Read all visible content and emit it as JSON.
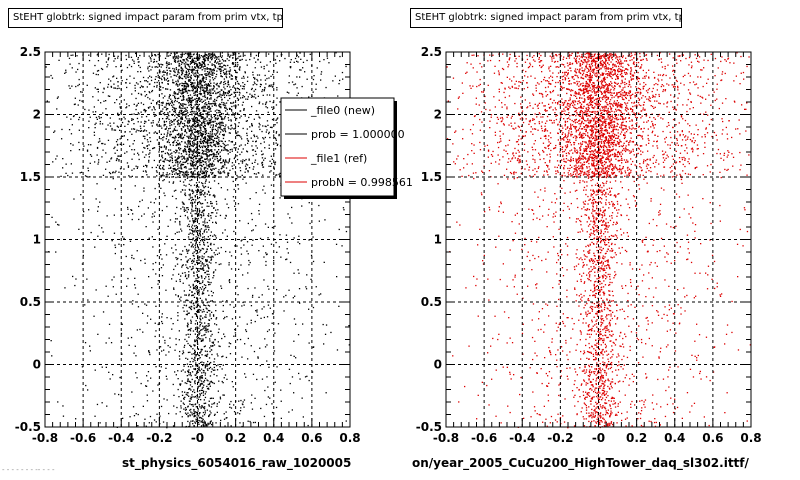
{
  "panels": [
    {
      "title": "StEHT globtrk: signed impact param from prim vtx, tpc+svt",
      "xcaption": "st_physics_6054016_raw_1020005",
      "marker_color": "#000000"
    },
    {
      "title": "StEHT globtrk: signed impact param from prim vtx, tpc+svt",
      "xcaption": "on/year_2005_CuCu200_HighTower_daq_sl302.ittf/",
      "marker_color": "#dd0000"
    }
  ],
  "legend": {
    "entries": [
      {
        "label": "_file0 (new)",
        "color": "#000000"
      },
      {
        "label": "prob = 1.000000",
        "color": "#000000"
      },
      {
        "label": "_file1 (ref)",
        "color": "#dd0000"
      },
      {
        "label": "probN = 0.998561",
        "color": "#dd0000"
      }
    ]
  },
  "footer": "- - - -  -  - - -- - - -",
  "chart_data": [
    {
      "type": "scatter",
      "title": "StEHT globtrk: signed impact param from prim vtx, tpc+svt",
      "xlabel": "",
      "ylabel": "",
      "xlim": [
        -0.8,
        0.8
      ],
      "ylim": [
        -0.5,
        2.5
      ],
      "xticks": [
        "-0.8",
        "-0.6",
        "-0.4",
        "-0.2",
        "-0",
        "0.2",
        "0.4",
        "0.6",
        "0.8"
      ],
      "yticks": [
        "-0.5",
        "0",
        "0.5",
        "1",
        "1.5",
        "2",
        "2.5"
      ],
      "grid": true,
      "series": [
        {
          "name": "_file0 (new)",
          "color": "#000000"
        }
      ]
    },
    {
      "type": "scatter",
      "title": "StEHT globtrk: signed impact param from prim vtx, tpc+svt",
      "xlabel": "",
      "ylabel": "",
      "xlim": [
        -0.8,
        0.8
      ],
      "ylim": [
        -0.5,
        2.5
      ],
      "xticks": [
        "-0.8",
        "-0.6",
        "-0.4",
        "-0.2",
        "-0",
        "0.2",
        "0.4",
        "0.6",
        "0.8"
      ],
      "yticks": [
        "-0.5",
        "0",
        "0.5",
        "1",
        "1.5",
        "2",
        "2.5"
      ],
      "grid": true,
      "series": [
        {
          "name": "_file1 (ref)",
          "color": "#dd0000"
        }
      ]
    }
  ]
}
